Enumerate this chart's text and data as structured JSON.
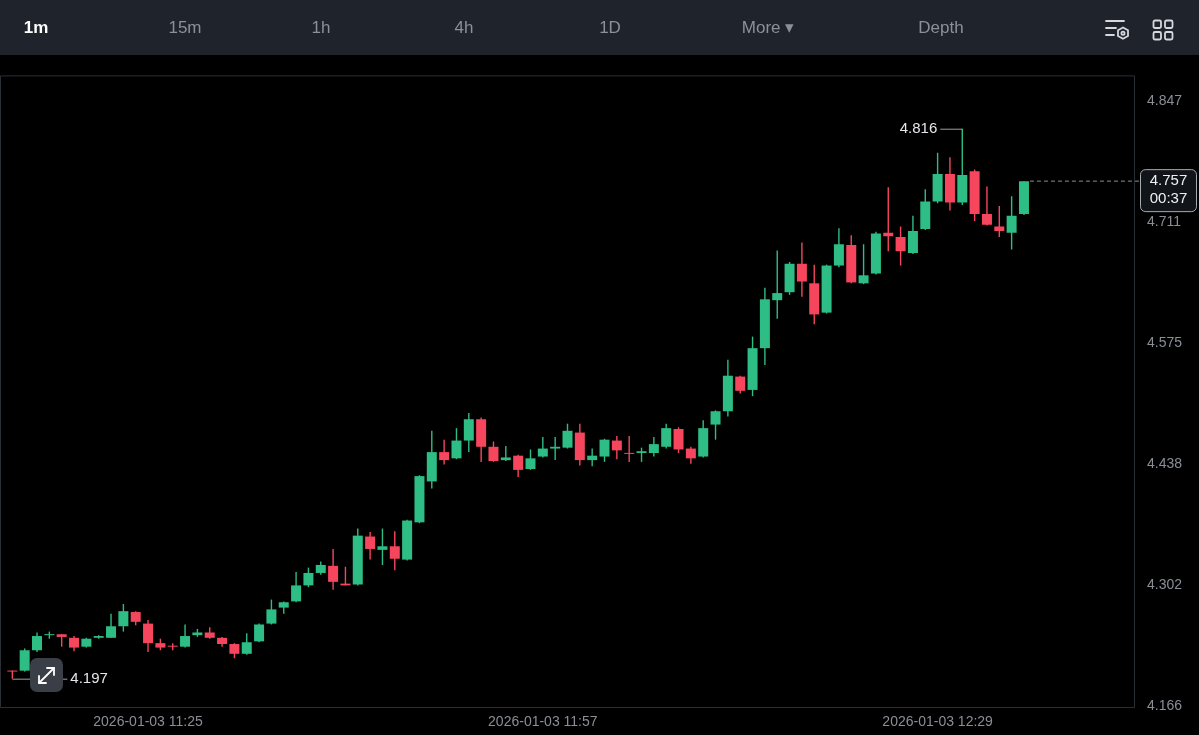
{
  "chart_data": {
    "type": "candlestick",
    "x": [
      "2026-01-03T11:14",
      "2026-01-03T11:15",
      "2026-01-03T11:16",
      "2026-01-03T11:17",
      "2026-01-03T11:18",
      "2026-01-03T11:19",
      "2026-01-03T11:20",
      "2026-01-03T11:21",
      "2026-01-03T11:22",
      "2026-01-03T11:23",
      "2026-01-03T11:24",
      "2026-01-03T11:25",
      "2026-01-03T11:26",
      "2026-01-03T11:27",
      "2026-01-03T11:28",
      "2026-01-03T11:29",
      "2026-01-03T11:30",
      "2026-01-03T11:31",
      "2026-01-03T11:32",
      "2026-01-03T11:33",
      "2026-01-03T11:34",
      "2026-01-03T11:35",
      "2026-01-03T11:36",
      "2026-01-03T11:37",
      "2026-01-03T11:38",
      "2026-01-03T11:39",
      "2026-01-03T11:40",
      "2026-01-03T11:41",
      "2026-01-03T11:42",
      "2026-01-03T11:43",
      "2026-01-03T11:44",
      "2026-01-03T11:45",
      "2026-01-03T11:46",
      "2026-01-03T11:47",
      "2026-01-03T11:48",
      "2026-01-03T11:49",
      "2026-01-03T11:50",
      "2026-01-03T11:51",
      "2026-01-03T11:52",
      "2026-01-03T11:53",
      "2026-01-03T11:54",
      "2026-01-03T11:55",
      "2026-01-03T11:56",
      "2026-01-03T11:57",
      "2026-01-03T11:58",
      "2026-01-03T11:59",
      "2026-01-03T12:00",
      "2026-01-03T12:01",
      "2026-01-03T12:02",
      "2026-01-03T12:03",
      "2026-01-03T12:04",
      "2026-01-03T12:05",
      "2026-01-03T12:06",
      "2026-01-03T12:07",
      "2026-01-03T12:08",
      "2026-01-03T12:09",
      "2026-01-03T12:10",
      "2026-01-03T12:11",
      "2026-01-03T12:12",
      "2026-01-03T12:13",
      "2026-01-03T12:14",
      "2026-01-03T12:15",
      "2026-01-03T12:16",
      "2026-01-03T12:17",
      "2026-01-03T12:18",
      "2026-01-03T12:19",
      "2026-01-03T12:20",
      "2026-01-03T12:21",
      "2026-01-03T12:22",
      "2026-01-03T12:23",
      "2026-01-03T12:24",
      "2026-01-03T12:25",
      "2026-01-03T12:26",
      "2026-01-03T12:27",
      "2026-01-03T12:28",
      "2026-01-03T12:29",
      "2026-01-03T12:30",
      "2026-01-03T12:31",
      "2026-01-03T12:32",
      "2026-01-03T12:33",
      "2026-01-03T12:34",
      "2026-01-03T12:35",
      "2026-01-03T12:36"
    ],
    "ohlc": [
      [
        4.206,
        4.206,
        4.197,
        4.205
      ],
      [
        4.206,
        4.231,
        4.205,
        4.229
      ],
      [
        4.229,
        4.249,
        4.227,
        4.245
      ],
      [
        4.246,
        4.25,
        4.242,
        4.247
      ],
      [
        4.247,
        4.247,
        4.233,
        4.244
      ],
      [
        4.243,
        4.245,
        4.228,
        4.232
      ],
      [
        4.233,
        4.243,
        4.232,
        4.242
      ],
      [
        4.243,
        4.246,
        4.242,
        4.245
      ],
      [
        4.243,
        4.27,
        4.243,
        4.256
      ],
      [
        4.256,
        4.281,
        4.25,
        4.273
      ],
      [
        4.272,
        4.273,
        4.257,
        4.261
      ],
      [
        4.259,
        4.263,
        4.227,
        4.237
      ],
      [
        4.237,
        4.242,
        4.229,
        4.232
      ],
      [
        4.234,
        4.237,
        4.229,
        4.233
      ],
      [
        4.233,
        4.258,
        4.232,
        4.245
      ],
      [
        4.246,
        4.253,
        4.244,
        4.249
      ],
      [
        4.249,
        4.255,
        4.242,
        4.243
      ],
      [
        4.243,
        4.244,
        4.233,
        4.236
      ],
      [
        4.236,
        4.237,
        4.22,
        4.225
      ],
      [
        4.225,
        4.248,
        4.224,
        4.238
      ],
      [
        4.239,
        4.259,
        4.238,
        4.258
      ],
      [
        4.259,
        4.286,
        4.258,
        4.275
      ],
      [
        4.277,
        4.284,
        4.27,
        4.283
      ],
      [
        4.284,
        4.317,
        4.283,
        4.302
      ],
      [
        4.302,
        4.322,
        4.3,
        4.316
      ],
      [
        4.316,
        4.329,
        4.314,
        4.325
      ],
      [
        4.324,
        4.343,
        4.297,
        4.306
      ],
      [
        4.304,
        4.323,
        4.302,
        4.302
      ],
      [
        4.303,
        4.366,
        4.302,
        4.358
      ],
      [
        4.357,
        4.362,
        4.331,
        4.343
      ],
      [
        4.342,
        4.366,
        4.325,
        4.346
      ],
      [
        4.346,
        4.363,
        4.319,
        4.332
      ],
      [
        4.331,
        4.376,
        4.33,
        4.375
      ],
      [
        4.373,
        4.426,
        4.372,
        4.425
      ],
      [
        4.419,
        4.476,
        4.411,
        4.452
      ],
      [
        4.452,
        4.466,
        4.438,
        4.443
      ],
      [
        4.445,
        4.479,
        4.444,
        4.465
      ],
      [
        4.465,
        4.496,
        4.452,
        4.489
      ],
      [
        4.489,
        4.491,
        4.441,
        4.458
      ],
      [
        4.458,
        4.464,
        4.441,
        4.442
      ],
      [
        4.443,
        4.459,
        4.442,
        4.446
      ],
      [
        4.448,
        4.449,
        4.424,
        4.432
      ],
      [
        4.433,
        4.455,
        4.432,
        4.445
      ],
      [
        4.447,
        4.469,
        4.446,
        4.456
      ],
      [
        4.456,
        4.469,
        4.443,
        4.458
      ],
      [
        4.457,
        4.484,
        4.456,
        4.476
      ],
      [
        4.474,
        4.484,
        4.437,
        4.443
      ],
      [
        4.443,
        4.456,
        4.436,
        4.448
      ],
      [
        4.447,
        4.467,
        4.441,
        4.466
      ],
      [
        4.465,
        4.47,
        4.444,
        4.454
      ],
      [
        4.451,
        4.47,
        4.441,
        4.45
      ],
      [
        4.451,
        4.457,
        4.441,
        4.453
      ],
      [
        4.451,
        4.469,
        4.447,
        4.461
      ],
      [
        4.458,
        4.484,
        4.456,
        4.479
      ],
      [
        4.478,
        4.48,
        4.451,
        4.455
      ],
      [
        4.456,
        4.458,
        4.439,
        4.445
      ],
      [
        4.447,
        4.488,
        4.446,
        4.479
      ],
      [
        4.483,
        4.499,
        4.466,
        4.498
      ],
      [
        4.498,
        4.556,
        4.492,
        4.538
      ],
      [
        4.537,
        4.538,
        4.518,
        4.521
      ],
      [
        4.522,
        4.582,
        4.515,
        4.569
      ],
      [
        4.569,
        4.637,
        4.55,
        4.624
      ],
      [
        4.623,
        4.679,
        4.602,
        4.631
      ],
      [
        4.632,
        4.666,
        4.629,
        4.664
      ],
      [
        4.664,
        4.688,
        4.627,
        4.644
      ],
      [
        4.642,
        4.663,
        4.596,
        4.607
      ],
      [
        4.609,
        4.663,
        4.608,
        4.662
      ],
      [
        4.662,
        4.704,
        4.66,
        4.686
      ],
      [
        4.685,
        4.696,
        4.642,
        4.643
      ],
      [
        4.642,
        4.686,
        4.641,
        4.651
      ],
      [
        4.653,
        4.7,
        4.652,
        4.698
      ],
      [
        4.699,
        4.75,
        4.678,
        4.695
      ],
      [
        4.694,
        4.706,
        4.662,
        4.678
      ],
      [
        4.676,
        4.718,
        4.675,
        4.701
      ],
      [
        4.703,
        4.748,
        4.702,
        4.734
      ],
      [
        4.734,
        4.789,
        4.732,
        4.765
      ],
      [
        4.765,
        4.784,
        4.724,
        4.733
      ],
      [
        4.733,
        4.816,
        4.73,
        4.764
      ],
      [
        4.768,
        4.77,
        4.712,
        4.72
      ],
      [
        4.72,
        4.751,
        4.707,
        4.708
      ],
      [
        4.706,
        4.729,
        4.694,
        4.701
      ],
      [
        4.699,
        4.74,
        4.68,
        4.718
      ],
      [
        4.72,
        4.757,
        4.719,
        4.757
      ]
    ],
    "colors": [
      "#f6465d",
      "#2ebd85",
      "#2ebd85",
      "#2ebd85",
      "#f6465d",
      "#f6465d",
      "#2ebd85",
      "#2ebd85",
      "#2ebd85",
      "#2ebd85",
      "#f6465d",
      "#f6465d",
      "#f6465d",
      "#f6465d",
      "#2ebd85",
      "#2ebd85",
      "#f6465d",
      "#f6465d",
      "#f6465d",
      "#2ebd85",
      "#2ebd85",
      "#2ebd85",
      "#2ebd85",
      "#2ebd85",
      "#2ebd85",
      "#2ebd85",
      "#f6465d",
      "#f6465d",
      "#2ebd85",
      "#f6465d",
      "#2ebd85",
      "#f6465d",
      "#2ebd85",
      "#2ebd85",
      "#2ebd85",
      "#f6465d",
      "#2ebd85",
      "#2ebd85",
      "#f6465d",
      "#f6465d",
      "#2ebd85",
      "#f6465d",
      "#2ebd85",
      "#2ebd85",
      "#2ebd85",
      "#2ebd85",
      "#f6465d",
      "#2ebd85",
      "#2ebd85",
      "#f6465d",
      "#f6465d",
      "#2ebd85",
      "#2ebd85",
      "#2ebd85",
      "#f6465d",
      "#f6465d",
      "#2ebd85",
      "#2ebd85",
      "#2ebd85",
      "#f6465d",
      "#2ebd85",
      "#2ebd85",
      "#2ebd85",
      "#2ebd85",
      "#f6465d",
      "#f6465d",
      "#2ebd85",
      "#2ebd85",
      "#f6465d",
      "#2ebd85",
      "#2ebd85",
      "#f6465d",
      "#f6465d",
      "#2ebd85",
      "#2ebd85",
      "#2ebd85",
      "#f6465d",
      "#2ebd85",
      "#f6465d",
      "#f6465d",
      "#f6465d",
      "#2ebd85",
      "#2ebd85"
    ],
    "xlim": [
      "2026-01-03T11:13",
      "2026-01-03T12:45"
    ],
    "xticks": [
      {
        "value": "2026-01-03T11:25",
        "label": "2026-01-03 11:25"
      },
      {
        "value": "2026-01-03T11:57",
        "label": "2026-01-03 11:57"
      },
      {
        "value": "2026-01-03T12:29",
        "label": "2026-01-03 12:29"
      }
    ],
    "ylim": [
      4.164,
      4.876
    ],
    "yticks": [
      4.166,
      4.302,
      4.438,
      4.575,
      4.711,
      4.847
    ],
    "ref_lines": [
      {
        "axis": "y",
        "value": 4.757,
        "label": "4.757",
        "line_style": "dashed",
        "color": "#8a8d94"
      }
    ],
    "annotations": [
      "1m",
      "15m",
      "1h",
      "4h",
      "1D",
      "More ▾",
      "Depth",
      {
        "text": "4.816",
        "x": "2026-01-03T12:31",
        "y": 4.816
      },
      {
        "text": "4.197",
        "x": "2026-01-03T11:14",
        "y": 4.197
      },
      "00:37"
    ]
  }
}
